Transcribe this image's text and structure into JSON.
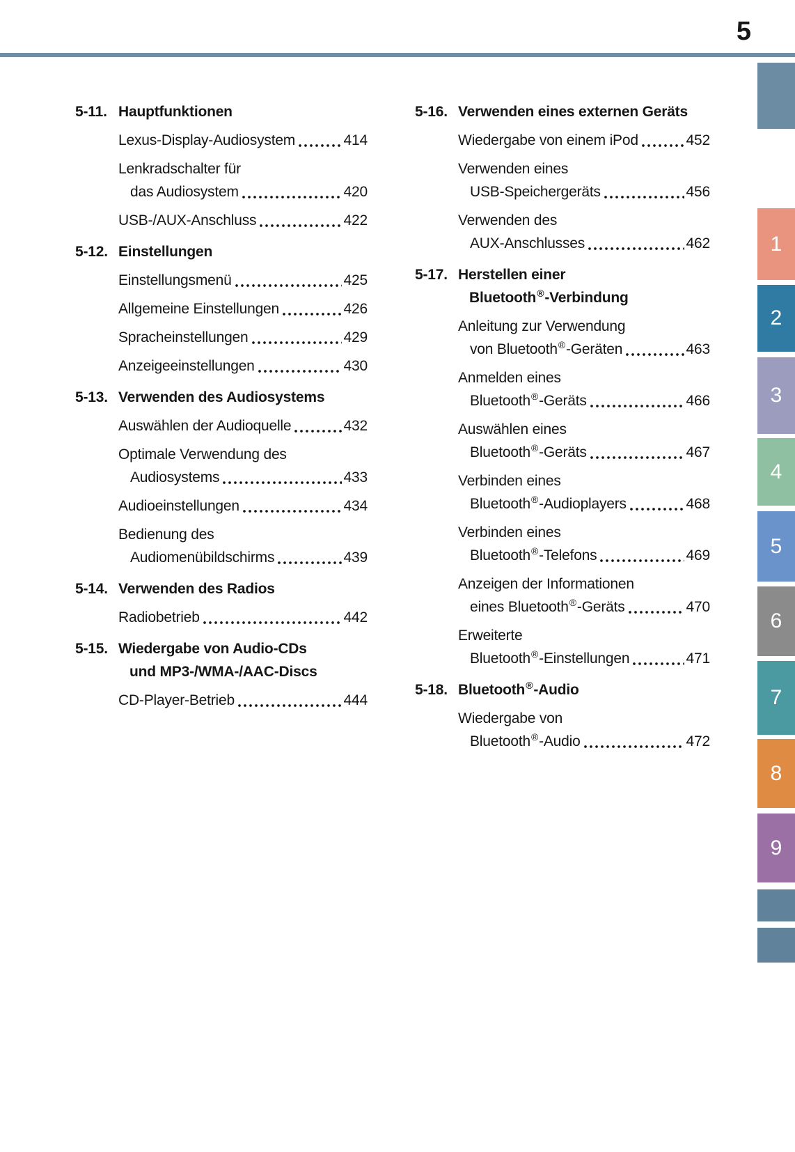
{
  "page_number": "5",
  "colors": {
    "header_rule": "#6e8ea8",
    "tab_top": "#6c8ca4",
    "tab_bottom": "#60829b"
  },
  "toc": {
    "left": {
      "rows": [
        {
          "num": "5-11.",
          "text": "Hauptfunktionen"
        },
        {
          "text": "Lexus-Display-Audiosystem",
          "page": "414"
        },
        {
          "text": "Lenkradschalter für"
        },
        {
          "text": "das Audiosystem",
          "page": "420"
        },
        {
          "text": "USB-/AUX-Anschluss",
          "page": "422"
        },
        {
          "num": "5-12.",
          "text": "Einstellungen"
        },
        {
          "text": "Einstellungsmenü",
          "page": "425"
        },
        {
          "text": "Allgemeine Einstellungen",
          "page": "426"
        },
        {
          "text": "Spracheinstellungen",
          "page": "429"
        },
        {
          "text": "Anzeigeeinstellungen",
          "page": "430"
        },
        {
          "num": "5-13.",
          "text": "Verwenden des Audiosystems"
        },
        {
          "text": "Auswählen der Audioquelle",
          "page": "432"
        },
        {
          "text": "Optimale Verwendung des"
        },
        {
          "text": "Audiosystems",
          "page": "433"
        },
        {
          "text": "Audioeinstellungen",
          "page": "434"
        },
        {
          "text": "Bedienung des"
        },
        {
          "text": "Audiomenübildschirms",
          "page": "439"
        },
        {
          "num": "5-14.",
          "text": "Verwenden des Radios"
        },
        {
          "text": "Radiobetrieb",
          "page": "442"
        },
        {
          "num": "5-15.",
          "text": "Wiedergabe von Audio-CDs"
        },
        {
          "text": "und MP3-/WMA-/AAC-Discs"
        },
        {
          "text": "CD-Player-Betrieb",
          "page": "444"
        }
      ]
    },
    "right": {
      "rows": [
        {
          "num": "5-16.",
          "text": "Verwenden eines externen Geräts"
        },
        {
          "text": "Wiedergabe von einem iPod",
          "page": "452"
        },
        {
          "text": "Verwenden eines"
        },
        {
          "text": "USB-Speichergeräts",
          "page": "456"
        },
        {
          "text": "Verwenden des"
        },
        {
          "text": "AUX-Anschlusses",
          "page": "462"
        },
        {
          "num": "5-17.",
          "text": "Herstellen einer"
        },
        {
          "pre": "Bluetooth",
          "sup": "®",
          "post": "-Verbindung"
        },
        {
          "text": "Anleitung zur Verwendung"
        },
        {
          "pre": "von Bluetooth",
          "sup": "®",
          "post": "-Geräten",
          "page": "463"
        },
        {
          "text": "Anmelden eines"
        },
        {
          "pre": "Bluetooth",
          "sup": "®",
          "post": "-Geräts",
          "page": "466"
        },
        {
          "text": "Auswählen eines"
        },
        {
          "pre": "Bluetooth",
          "sup": "®",
          "post": "-Geräts",
          "page": "467"
        },
        {
          "text": "Verbinden eines"
        },
        {
          "pre": "Bluetooth",
          "sup": "®",
          "post": "-Audioplayers",
          "page": "468"
        },
        {
          "text": "Verbinden eines"
        },
        {
          "pre": "Bluetooth",
          "sup": "®",
          "post": "-Telefons",
          "page": "469"
        },
        {
          "text": "Anzeigen der Informationen"
        },
        {
          "pre": "eines Bluetooth",
          "sup": "®",
          "post": "-Geräts",
          "page": "470"
        },
        {
          "text": "Erweiterte"
        },
        {
          "pre": "Bluetooth",
          "sup": "®",
          "post": "-Einstellungen",
          "page": "471"
        },
        {
          "num": "5-18.",
          "pre": "Bluetooth",
          "sup": "®",
          "post": "-Audio"
        },
        {
          "text": "Wiedergabe von"
        },
        {
          "pre": "Bluetooth",
          "sup": "®",
          "post": "-Audio",
          "page": "472"
        }
      ]
    }
  },
  "tabs": {
    "items": [
      {
        "label": "",
        "color": "#6c8ca4"
      },
      {
        "label": "1",
        "color": "#e8947e"
      },
      {
        "label": "2",
        "color": "#2f7ba4"
      },
      {
        "label": "3",
        "color": "#9c9dbe"
      },
      {
        "label": "4",
        "color": "#8fc0a1"
      },
      {
        "label": "5",
        "color": "#6a92cb"
      },
      {
        "label": "6",
        "color": "#8b8b8b"
      },
      {
        "label": "7",
        "color": "#4b9aa2"
      },
      {
        "label": "8",
        "color": "#e08b44"
      },
      {
        "label": "9",
        "color": "#9a70a5"
      },
      {
        "label": "",
        "color": "#60829b"
      },
      {
        "label": "",
        "color": "#60829b"
      }
    ]
  }
}
